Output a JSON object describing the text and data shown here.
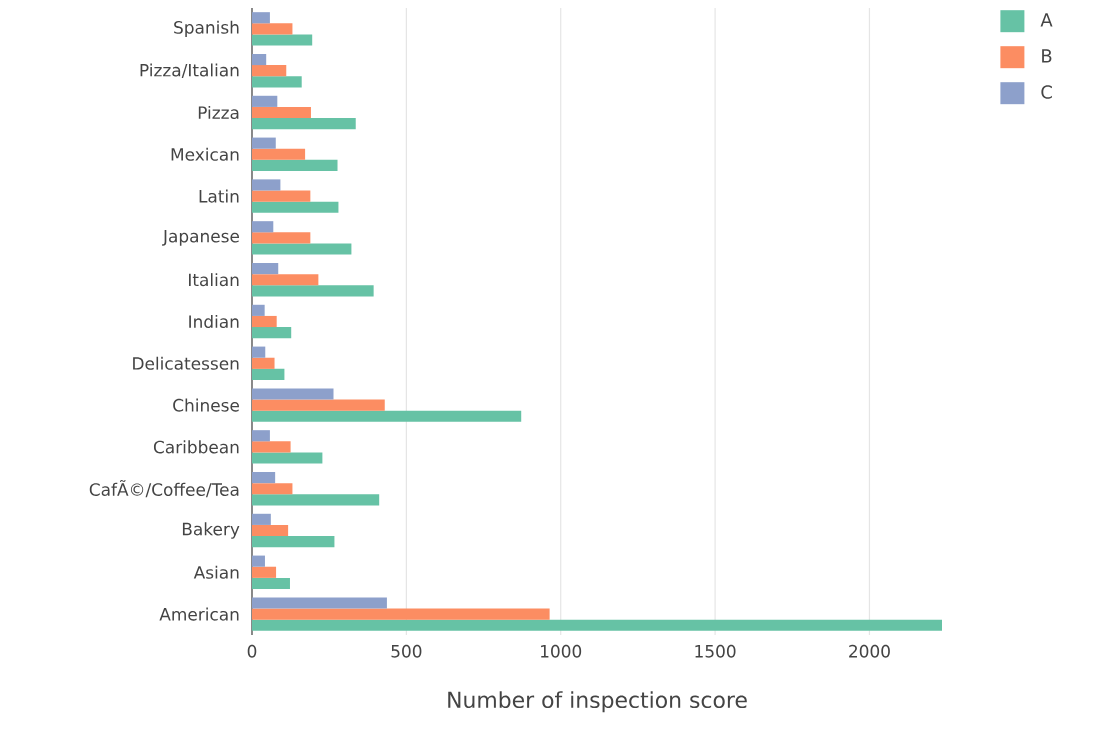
{
  "chart_data": {
    "type": "bar",
    "orientation": "horizontal",
    "categories": [
      "Spanish",
      "Pizza/Italian",
      "Pizza",
      "Mexican",
      "Latin",
      "Japanese",
      "Italian",
      "Indian",
      "Delicatessen",
      "Chinese",
      "Caribbean",
      "CafÃ©/Coffee/Tea",
      "Bakery",
      "Asian",
      "American"
    ],
    "series": [
      {
        "name": "A",
        "color": "#66c2a5",
        "values": [
          195,
          161,
          336,
          277,
          280,
          322,
          394,
          127,
          105,
          872,
          228,
          412,
          267,
          123,
          2235
        ]
      },
      {
        "name": "B",
        "color": "#fc8d62",
        "values": [
          131,
          111,
          191,
          172,
          189,
          189,
          215,
          80,
          73,
          430,
          125,
          131,
          117,
          78,
          964
        ]
      },
      {
        "name": "C",
        "color": "#8da0cb",
        "values": [
          58,
          46,
          82,
          77,
          92,
          69,
          85,
          41,
          43,
          264,
          58,
          75,
          61,
          42,
          437
        ]
      }
    ],
    "xlabel": "Number of inspection score",
    "xlim": [
      0,
      2235
    ],
    "xticks": [
      0,
      500,
      1000,
      1500,
      2000
    ],
    "grid": "x",
    "legend": "top right"
  }
}
